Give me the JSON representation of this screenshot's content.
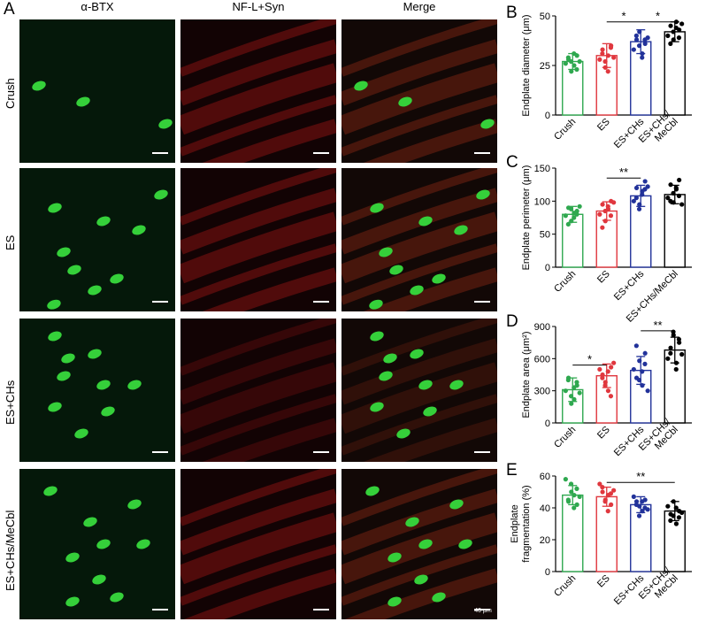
{
  "figure": {
    "panel_a_letter": "A",
    "columns": [
      "α-BTX",
      "NF-L+Syn",
      "Merge"
    ],
    "rows": [
      "Crush",
      "ES",
      "ES+CHs",
      "ES+CHs/MeCbl"
    ],
    "scale_label": "40 μm"
  },
  "colors": {
    "Crush": "#2fa84f",
    "ES": "#e0373e",
    "ES+CHs": "#22329a",
    "ES+CHs/MeCbl": "#000000"
  },
  "chart_data": [
    {
      "letter": "B",
      "type": "bar",
      "ylabel": "Endplate diameter (μm)",
      "ylim": [
        0,
        50
      ],
      "yticks": [
        0,
        25,
        50
      ],
      "categories": [
        "Crush",
        "ES",
        "ES+CHs",
        "ES+CHs/\nMeCbl"
      ],
      "values": [
        27,
        30,
        37,
        42
      ],
      "errors": [
        4,
        6,
        6,
        5
      ],
      "points": [
        [
          26,
          28,
          22,
          25,
          30,
          29,
          27,
          31,
          23,
          27
        ],
        [
          28,
          33,
          24,
          30,
          35,
          31,
          27,
          22,
          34,
          29
        ],
        [
          33,
          38,
          42,
          31,
          36,
          40,
          35,
          29,
          38,
          39
        ],
        [
          40,
          45,
          38,
          47,
          43,
          36,
          42,
          44,
          39,
          46
        ]
      ],
      "significance": [
        {
          "from": 1,
          "to": 2,
          "label": "*",
          "y": 47
        },
        {
          "from": 2,
          "to": 3,
          "label": "*",
          "y": 47
        }
      ]
    },
    {
      "letter": "C",
      "type": "bar",
      "ylabel": "Endplate perimeter (μm)",
      "ylim": [
        0,
        150
      ],
      "yticks": [
        0,
        50,
        100,
        150
      ],
      "categories": [
        "Crush",
        "ES",
        "ES+CHs",
        "ES+CHs/MeCbl"
      ],
      "values": [
        80,
        85,
        108,
        110
      ],
      "errors": [
        12,
        14,
        16,
        14
      ],
      "points": [
        [
          78,
          90,
          70,
          82,
          85,
          65,
          88,
          75,
          80,
          92
        ],
        [
          80,
          95,
          70,
          88,
          100,
          60,
          85,
          92,
          78,
          98
        ],
        [
          100,
          120,
          95,
          115,
          130,
          105,
          88,
          110,
          118,
          122
        ],
        [
          105,
          125,
          98,
          118,
          132,
          100,
          112,
          120,
          108,
          95
        ]
      ],
      "significance": [
        {
          "from": 1,
          "to": 2,
          "label": "**",
          "y": 135
        }
      ]
    },
    {
      "letter": "D",
      "type": "bar",
      "ylabel": "Endplate area (μm²)",
      "ylim": [
        0,
        900
      ],
      "yticks": [
        0,
        300,
        600,
        900
      ],
      "categories": [
        "Crush",
        "ES",
        "ES+CHs",
        "ES+CHs/\nMeCbl"
      ],
      "values": [
        310,
        440,
        490,
        680
      ],
      "errors": [
        110,
        110,
        130,
        120
      ],
      "points": [
        [
          300,
          420,
          180,
          220,
          350,
          400,
          250,
          330,
          380,
          280
        ],
        [
          500,
          450,
          380,
          300,
          520,
          420,
          350,
          480,
          250,
          560
        ],
        [
          500,
          420,
          580,
          350,
          650,
          720,
          400,
          480,
          550,
          300
        ],
        [
          600,
          700,
          820,
          560,
          750,
          650,
          850,
          500,
          780,
          640
        ]
      ],
      "significance": [
        {
          "from": 0,
          "to": 1,
          "label": "*",
          "y": 540
        },
        {
          "from": 2,
          "to": 3,
          "label": "**",
          "y": 860
        }
      ]
    },
    {
      "letter": "E",
      "type": "bar",
      "ylabel": "Endplate\nfragmentation (%)",
      "ylim": [
        0,
        60
      ],
      "yticks": [
        0,
        20,
        40,
        60
      ],
      "categories": [
        "Crush",
        "ES",
        "ES+CHs",
        "ES+CHs/\nMeCbl"
      ],
      "values": [
        48,
        47,
        42,
        38
      ],
      "errors": [
        6,
        6,
        5,
        6
      ],
      "points": [
        [
          58,
          44,
          50,
          48,
          42,
          45,
          55,
          40,
          52,
          47
        ],
        [
          55,
          50,
          45,
          48,
          42,
          53,
          44,
          38,
          49,
          51
        ],
        [
          47,
          44,
          41,
          38,
          45,
          42,
          35,
          44,
          40,
          39
        ],
        [
          41,
          36,
          44,
          30,
          38,
          32,
          35,
          40,
          34,
          37
        ]
      ],
      "significance": [
        {
          "from": 1,
          "to": 3,
          "label": "**",
          "y": 56
        }
      ]
    }
  ]
}
